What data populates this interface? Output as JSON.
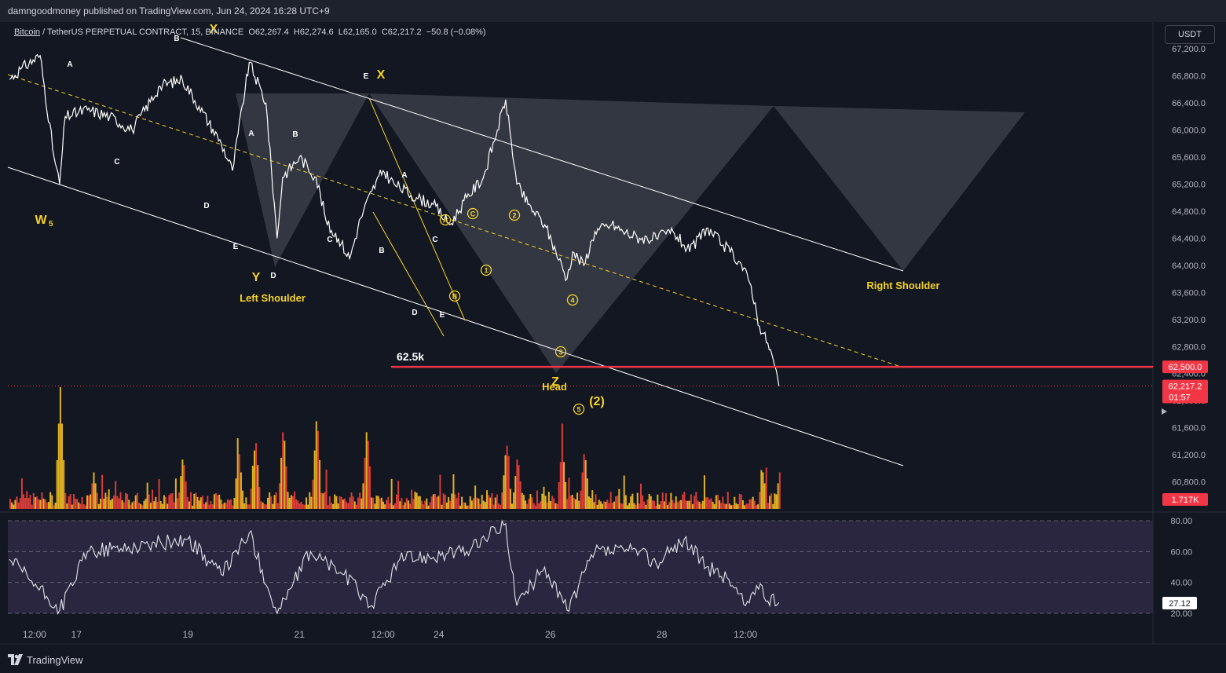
{
  "header": {
    "publish_line": "damngoodmoney published on TradingView.com, Jun 24, 2024 16:28 UTC+9"
  },
  "symbol": {
    "name": "Bitcoin",
    "rest": " / TetherUS PERPETUAL CONTRACT, 15, BINANCE",
    "open_label": "O",
    "open": "62,267.4",
    "high_label": "H",
    "high": "62,274.6",
    "low_label": "L",
    "low": "62,165.0",
    "close_label": "C",
    "close": "62,217.2",
    "change": "−50.8 (−0.08%)"
  },
  "currency_button": "USDT",
  "brand": "TradingView",
  "colors": {
    "background": "#131722",
    "resistance_line": "#f23645",
    "wave_labels": "#f5d328",
    "channel_lines": "#ffffff",
    "rsi_band": "#2a2640"
  },
  "chart_data": [
    {
      "type": "line",
      "title": "",
      "price_axis": {
        "ylim": [
          60400,
          67400
        ],
        "ticks": [
          "67,200.0",
          "66,800.0",
          "66,400.0",
          "66,000.0",
          "65,600.0",
          "65,200.0",
          "64,800.0",
          "64,400.0",
          "64,000.0",
          "63,600.0",
          "63,200.0",
          "62,800.0",
          "62,400.0",
          "62,000.0",
          "61,600.0",
          "61,200.0",
          "60,800.0"
        ],
        "tick_values": [
          67200,
          66800,
          66400,
          66000,
          65600,
          65200,
          64800,
          64400,
          64000,
          63600,
          63200,
          62800,
          62400,
          62000,
          61600,
          61200,
          60800
        ]
      },
      "time_axis": {
        "labels": [
          "12:00",
          "17",
          "19",
          "21",
          "12:00",
          "24",
          "26",
          "28",
          "12:00"
        ],
        "label_days": [
          0.45,
          1.2,
          3.2,
          5.2,
          6.7,
          7.7,
          9.7,
          11.7,
          13.2
        ]
      },
      "price_tags": {
        "resistance": "62,500.0",
        "last_price": "62,217.2",
        "countdown": "01:57",
        "volume": "1.717K",
        "rsi": "27.12"
      },
      "series_points": [
        [
          0.0,
          66750
        ],
        [
          0.2,
          66900
        ],
        [
          0.55,
          67100
        ],
        [
          0.8,
          65600
        ],
        [
          0.9,
          65200
        ],
        [
          1.0,
          66200
        ],
        [
          1.4,
          66300
        ],
        [
          1.8,
          66200
        ],
        [
          2.2,
          66000
        ],
        [
          2.7,
          66650
        ],
        [
          3.1,
          66750
        ],
        [
          3.4,
          66350
        ],
        [
          3.8,
          65800
        ],
        [
          4.0,
          65400
        ],
        [
          4.3,
          67000
        ],
        [
          4.6,
          66400
        ],
        [
          4.8,
          64400
        ],
        [
          4.9,
          65300
        ],
        [
          5.2,
          65600
        ],
        [
          5.5,
          65300
        ],
        [
          5.7,
          64600
        ],
        [
          5.9,
          64400
        ],
        [
          6.1,
          64100
        ],
        [
          6.3,
          64700
        ],
        [
          6.5,
          65100
        ],
        [
          6.7,
          65400
        ],
        [
          6.9,
          65200
        ],
        [
          7.3,
          65000
        ],
        [
          7.6,
          64900
        ],
        [
          7.9,
          64600
        ],
        [
          8.2,
          65000
        ],
        [
          8.5,
          65300
        ],
        [
          8.75,
          66000
        ],
        [
          8.9,
          66450
        ],
        [
          9.1,
          65200
        ],
        [
          9.3,
          64900
        ],
        [
          9.6,
          64600
        ],
        [
          9.8,
          64200
        ],
        [
          10.0,
          63800
        ],
        [
          10.1,
          64200
        ],
        [
          10.3,
          64000
        ],
        [
          10.5,
          64500
        ],
        [
          10.8,
          64600
        ],
        [
          11.0,
          64500
        ],
        [
          11.3,
          64400
        ],
        [
          11.6,
          64400
        ],
        [
          11.9,
          64500
        ],
        [
          12.2,
          64200
        ],
        [
          12.5,
          64550
        ],
        [
          12.8,
          64300
        ],
        [
          13.1,
          64050
        ],
        [
          13.3,
          63700
        ],
        [
          13.45,
          63100
        ],
        [
          13.6,
          62850
        ],
        [
          13.7,
          62600
        ],
        [
          13.8,
          62217
        ]
      ],
      "volume_spikes": [
        [
          0.9,
          1.0
        ],
        [
          1.5,
          0.3
        ],
        [
          3.1,
          0.45
        ],
        [
          4.1,
          0.5
        ],
        [
          4.4,
          0.6
        ],
        [
          4.9,
          0.7
        ],
        [
          5.5,
          0.8
        ],
        [
          6.4,
          0.7
        ],
        [
          8.9,
          0.55
        ],
        [
          9.1,
          0.45
        ],
        [
          9.9,
          0.55
        ],
        [
          10.3,
          0.5
        ],
        [
          13.5,
          0.3
        ],
        [
          13.8,
          0.3
        ]
      ],
      "rsi": {
        "ticks": [
          "80.00",
          "60.00",
          "40.00",
          "20.00"
        ],
        "tick_values": [
          80,
          60,
          40,
          20
        ],
        "band": [
          30,
          70
        ],
        "points": [
          [
            0,
            55
          ],
          [
            0.9,
            22
          ],
          [
            1.4,
            60
          ],
          [
            2.0,
            62
          ],
          [
            3.2,
            68
          ],
          [
            3.8,
            45
          ],
          [
            4.3,
            72
          ],
          [
            4.8,
            20
          ],
          [
            5.4,
            60
          ],
          [
            6.0,
            45
          ],
          [
            6.5,
            25
          ],
          [
            7.0,
            55
          ],
          [
            8.2,
            60
          ],
          [
            8.9,
            78
          ],
          [
            9.1,
            25
          ],
          [
            9.6,
            50
          ],
          [
            10.0,
            22
          ],
          [
            10.5,
            60
          ],
          [
            11.3,
            60
          ],
          [
            11.6,
            52
          ],
          [
            12.1,
            68
          ],
          [
            12.5,
            50
          ],
          [
            12.9,
            42
          ],
          [
            13.2,
            25
          ],
          [
            13.4,
            38
          ],
          [
            13.6,
            28
          ],
          [
            13.8,
            27
          ]
        ]
      },
      "annotations": {
        "level_label": "62.5k",
        "pattern_labels": [
          "Left Shoulder",
          "Head",
          "Right Shoulder"
        ],
        "wave_labels": [
          "W5",
          "X",
          "Y",
          "X",
          "Z",
          "(2)"
        ],
        "wave_sub_labels": [
          "A",
          "B",
          "C",
          "D",
          "E",
          "A",
          "B",
          "C",
          "D",
          "E",
          "A",
          "B",
          "C",
          "D",
          "E"
        ],
        "circled_labels": [
          "A",
          "B",
          "C",
          "1",
          "2",
          "3",
          "4",
          "5"
        ]
      }
    }
  ]
}
